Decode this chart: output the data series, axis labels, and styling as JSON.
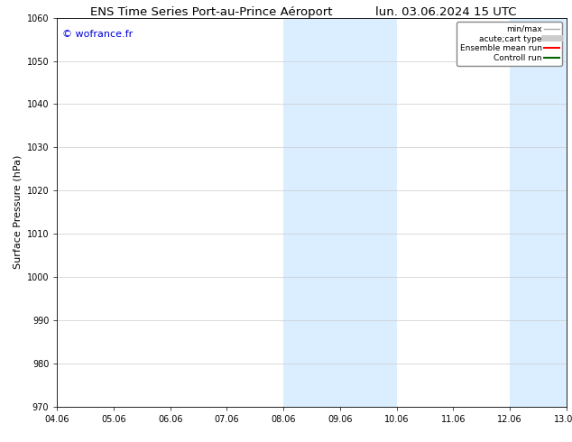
{
  "title_left": "ENS Time Series Port-au-Prince Aéroport",
  "title_right": "lun. 03.06.2024 15 UTC",
  "ylabel": "Surface Pressure (hPa)",
  "watermark": "© wofrance.fr",
  "watermark_color": "#0000dd",
  "ylim": [
    970,
    1060
  ],
  "yticks": [
    970,
    980,
    990,
    1000,
    1010,
    1020,
    1030,
    1040,
    1050,
    1060
  ],
  "xtick_labels": [
    "04.06",
    "05.06",
    "06.06",
    "07.06",
    "08.06",
    "09.06",
    "10.06",
    "11.06",
    "12.06",
    "13.06"
  ],
  "x_num_ticks": 10,
  "xlim_start": 0,
  "xlim_end": 9,
  "shaded_bands": [
    {
      "x_start": 4,
      "x_end": 6
    },
    {
      "x_start": 8,
      "x_end": 9
    }
  ],
  "shade_color": "#daeeff",
  "bg_color": "#ffffff",
  "plot_bg_color": "#ffffff",
  "grid_color": "#cccccc",
  "legend_entries": [
    {
      "label": "min/max",
      "color": "#aaaaaa",
      "lw": 1.0,
      "linestyle": "-"
    },
    {
      "label": "acute;cart type",
      "color": "#cccccc",
      "lw": 5,
      "linestyle": "-"
    },
    {
      "label": "Ensemble mean run",
      "color": "#ff0000",
      "lw": 1.5,
      "linestyle": "-"
    },
    {
      "label": "Controll run",
      "color": "#006600",
      "lw": 1.5,
      "linestyle": "-"
    }
  ],
  "title_fontsize": 9.5,
  "tick_fontsize": 7,
  "legend_fontsize": 6.5,
  "ylabel_fontsize": 8
}
